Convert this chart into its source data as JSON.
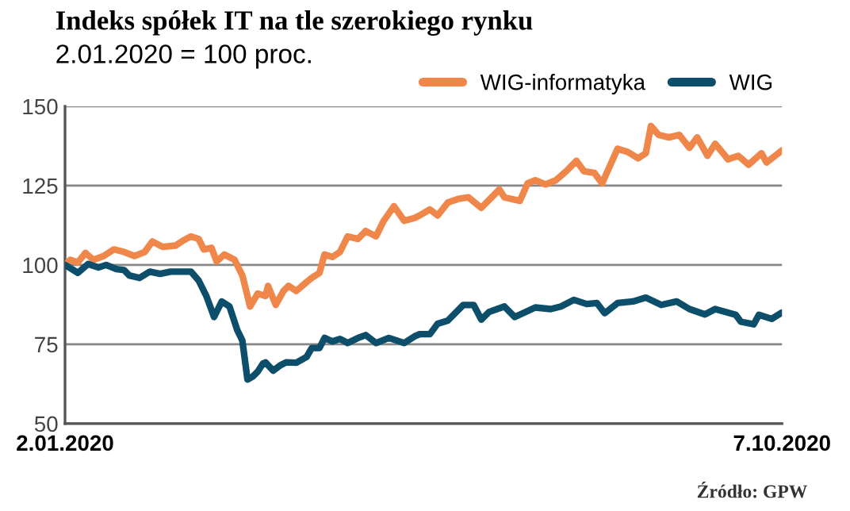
{
  "chart_data": {
    "type": "line",
    "title": "Indeks spółek IT na tle szerokiego rynku",
    "subtitle": "2.01.2020 = 100 proc.",
    "annotations": [
      "Źródło: GPW"
    ],
    "xlim": [
      "2020-01-02",
      "2020-10-07"
    ],
    "xticks": [
      {
        "value": "2020-01-02",
        "label": "2.01.2020"
      },
      {
        "value": "2020-10-07",
        "label": "7.10.2020"
      }
    ],
    "ylim": [
      50,
      150
    ],
    "yticks": [
      50,
      75,
      100,
      125,
      150
    ],
    "grid": "y",
    "legend": "top right",
    "line_style": "solid",
    "series": [
      {
        "name": "WIG-informatyka",
        "color": "#f0874a",
        "x": [
          "2020-01-02",
          "2020-01-04",
          "2020-01-07",
          "2020-01-10",
          "2020-01-13",
          "2020-01-17",
          "2020-01-21",
          "2020-01-25",
          "2020-01-29",
          "2020-02-02",
          "2020-02-05",
          "2020-02-09",
          "2020-02-14",
          "2020-02-17",
          "2020-02-20",
          "2020-02-23",
          "2020-02-25",
          "2020-02-28",
          "2020-03-01",
          "2020-03-04",
          "2020-03-08",
          "2020-03-11",
          "2020-03-14",
          "2020-03-17",
          "2020-03-20",
          "2020-03-21",
          "2020-03-24",
          "2020-03-27",
          "2020-03-29",
          "2020-04-01",
          "2020-04-05",
          "2020-04-07",
          "2020-04-10",
          "2020-04-12",
          "2020-04-15",
          "2020-04-18",
          "2020-04-21",
          "2020-04-25",
          "2020-04-28",
          "2020-05-02",
          "2020-05-05",
          "2020-05-09",
          "2020-05-13",
          "2020-05-17",
          "2020-05-19",
          "2020-05-23",
          "2020-05-26",
          "2020-05-30",
          "2020-06-03",
          "2020-06-07",
          "2020-06-12",
          "2020-06-16",
          "2020-06-19",
          "2020-06-21",
          "2020-06-27",
          "2020-06-30",
          "2020-07-03",
          "2020-07-07",
          "2020-07-11",
          "2020-07-15",
          "2020-07-19",
          "2020-07-22",
          "2020-07-26",
          "2020-07-29",
          "2020-08-04",
          "2020-08-08",
          "2020-08-12",
          "2020-08-15",
          "2020-08-17",
          "2020-08-20",
          "2020-08-24",
          "2020-08-28",
          "2020-09-01",
          "2020-09-04",
          "2020-09-08",
          "2020-09-11",
          "2020-09-16",
          "2020-09-20",
          "2020-09-24",
          "2020-09-29",
          "2020-10-01",
          "2020-10-07"
        ],
        "values": [
          100,
          101.6,
          100.8,
          103.8,
          101.6,
          102.8,
          104.9,
          104.1,
          102.8,
          104.1,
          107.4,
          105.7,
          106.1,
          107.7,
          109,
          108.2,
          104.9,
          105.4,
          101.1,
          103.3,
          101.6,
          96.7,
          86.9,
          91,
          90.2,
          93.4,
          87.4,
          91.8,
          93.4,
          91.8,
          94.6,
          95.9,
          97.5,
          103.3,
          102.5,
          104.1,
          109,
          108.2,
          110.7,
          109,
          113.9,
          118.5,
          113.9,
          114.8,
          115.6,
          117.5,
          115.6,
          119.7,
          120.8,
          121.3,
          118,
          121.3,
          123.8,
          121.3,
          120.2,
          125.7,
          126.7,
          125.4,
          126.7,
          129.5,
          132.8,
          129.5,
          129,
          125.7,
          136.6,
          135.6,
          133.6,
          135.2,
          143.8,
          141,
          140.2,
          141,
          136.9,
          140.2,
          134.4,
          138.2,
          133.3,
          134.4,
          131.6,
          135.2,
          132.3,
          136.1
        ]
      },
      {
        "name": "WIG",
        "color": "#0d4f6b",
        "x": [
          "2020-01-02",
          "2020-01-07",
          "2020-01-11",
          "2020-01-15",
          "2020-01-18",
          "2020-01-22",
          "2020-01-25",
          "2020-01-27",
          "2020-01-31",
          "2020-02-04",
          "2020-02-08",
          "2020-02-12",
          "2020-02-20",
          "2020-02-23",
          "2020-02-26",
          "2020-02-29",
          "2020-03-03",
          "2020-03-06",
          "2020-03-09",
          "2020-03-11",
          "2020-03-13",
          "2020-03-15",
          "2020-03-17",
          "2020-03-19",
          "2020-03-20",
          "2020-03-23",
          "2020-03-26",
          "2020-03-28",
          "2020-04-01",
          "2020-04-05",
          "2020-04-07",
          "2020-04-10",
          "2020-04-12",
          "2020-04-15",
          "2020-04-18",
          "2020-04-21",
          "2020-04-25",
          "2020-04-28",
          "2020-05-02",
          "2020-05-07",
          "2020-05-13",
          "2020-05-17",
          "2020-05-19",
          "2020-05-23",
          "2020-05-26",
          "2020-05-30",
          "2020-06-05",
          "2020-06-09",
          "2020-06-12",
          "2020-06-15",
          "2020-06-21",
          "2020-06-25",
          "2020-07-03",
          "2020-07-09",
          "2020-07-13",
          "2020-07-18",
          "2020-07-23",
          "2020-07-27",
          "2020-07-30",
          "2020-08-04",
          "2020-08-10",
          "2020-08-15",
          "2020-08-21",
          "2020-08-27",
          "2020-09-01",
          "2020-09-07",
          "2020-09-11",
          "2020-09-19",
          "2020-09-21",
          "2020-09-26",
          "2020-09-28",
          "2020-10-03",
          "2020-10-07"
        ],
        "values": [
          100,
          97.5,
          100.3,
          99.2,
          100,
          98.7,
          98.4,
          96.7,
          95.9,
          97.9,
          97.2,
          97.9,
          97.9,
          95.1,
          90.2,
          83.6,
          88.5,
          86.9,
          79.5,
          76.2,
          63.9,
          64.8,
          66.4,
          68.9,
          69.3,
          66.7,
          68.5,
          69.3,
          69.2,
          71,
          73.8,
          73.8,
          77,
          75.9,
          76.7,
          75.4,
          77,
          77.9,
          75.4,
          77,
          75.4,
          77.5,
          78.2,
          78.2,
          81.5,
          82.5,
          87.4,
          87.4,
          82.8,
          85.2,
          86.9,
          83.6,
          86.6,
          86.1,
          86.9,
          89,
          87.7,
          88,
          84.8,
          88,
          88.5,
          89.7,
          87.4,
          88.5,
          86.1,
          84.4,
          86.1,
          84.3,
          82.1,
          81.3,
          84.3,
          83,
          85
        ]
      }
    ]
  }
}
